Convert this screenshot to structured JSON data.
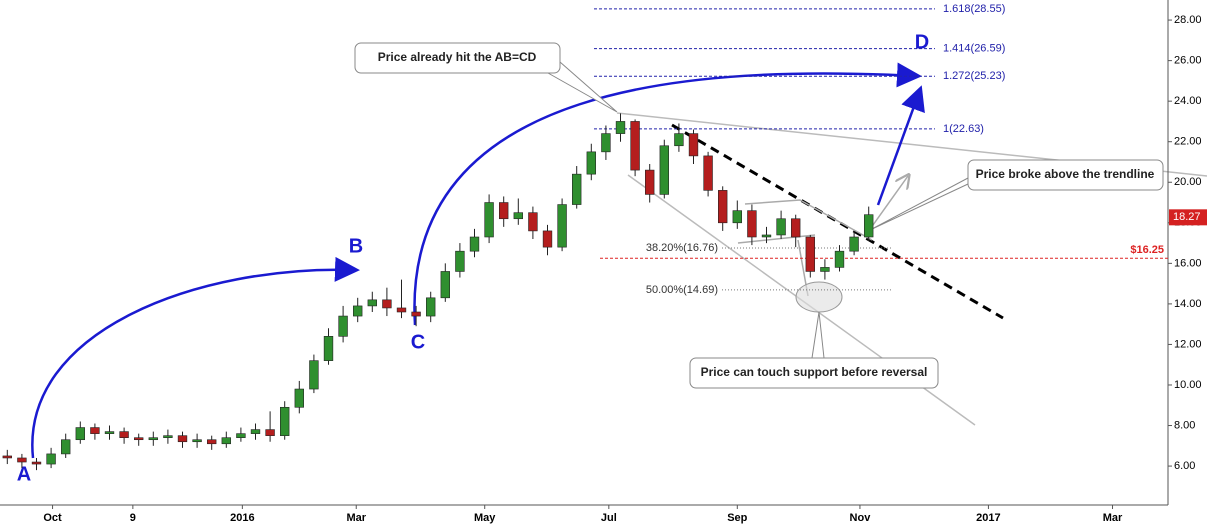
{
  "chart_data": {
    "type": "candlestick",
    "up_color": "#2f8f2f",
    "down_color": "#b41e1e",
    "open": [
      6.5,
      6.4,
      6.2,
      6.1,
      6.6,
      7.3,
      7.9,
      7.6,
      7.7,
      7.4,
      7.3,
      7.4,
      7.5,
      7.2,
      7.3,
      7.1,
      7.4,
      7.6,
      7.8,
      7.5,
      8.9,
      9.8,
      11.2,
      12.4,
      13.4,
      13.9,
      14.2,
      13.8,
      13.6,
      13.4,
      14.3,
      15.6,
      16.6,
      17.3,
      19.0,
      18.2,
      18.5,
      17.6,
      16.8,
      18.9,
      20.4,
      21.5,
      22.4,
      23.0,
      20.6,
      19.4,
      21.8,
      22.4,
      21.3,
      19.6,
      18.0,
      18.6,
      17.3,
      17.4,
      18.2,
      17.3,
      15.6,
      15.8,
      16.6,
      17.3
    ],
    "high": [
      6.8,
      6.6,
      6.4,
      6.9,
      7.6,
      8.2,
      8.1,
      8.0,
      7.9,
      7.6,
      7.7,
      7.8,
      7.7,
      7.6,
      7.5,
      7.7,
      7.9,
      8.1,
      8.7,
      9.2,
      10.2,
      11.5,
      12.8,
      13.9,
      14.3,
      14.6,
      14.8,
      15.2,
      13.9,
      14.6,
      16.0,
      17.0,
      17.7,
      19.4,
      19.3,
      19.2,
      18.8,
      17.9,
      19.2,
      20.8,
      21.9,
      22.8,
      23.4,
      23.1,
      20.9,
      22.1,
      22.9,
      22.6,
      21.5,
      19.8,
      19.1,
      18.9,
      17.8,
      18.6,
      18.4,
      17.4,
      16.2,
      16.9,
      17.6,
      18.8
    ],
    "low": [
      6.1,
      5.9,
      5.8,
      5.9,
      6.4,
      7.1,
      7.3,
      7.3,
      7.1,
      7.0,
      7.0,
      7.1,
      6.9,
      6.9,
      6.8,
      6.9,
      7.2,
      7.3,
      7.2,
      7.3,
      8.6,
      9.6,
      11.0,
      12.1,
      13.1,
      13.6,
      13.4,
      13.3,
      12.9,
      13.1,
      14.1,
      15.3,
      16.3,
      17.0,
      17.8,
      17.9,
      17.2,
      16.4,
      16.6,
      18.7,
      20.1,
      21.1,
      22.0,
      20.3,
      19.0,
      19.2,
      21.5,
      20.9,
      19.3,
      17.6,
      17.7,
      16.9,
      17.0,
      17.2,
      16.8,
      15.3,
      15.2,
      15.6,
      16.4,
      17.1
    ],
    "close": [
      6.4,
      6.2,
      6.1,
      6.6,
      7.3,
      7.9,
      7.6,
      7.7,
      7.4,
      7.3,
      7.4,
      7.5,
      7.2,
      7.3,
      7.1,
      7.4,
      7.6,
      7.8,
      7.5,
      8.9,
      9.8,
      11.2,
      12.4,
      13.4,
      13.9,
      14.2,
      13.8,
      13.6,
      13.4,
      14.3,
      15.6,
      16.6,
      17.3,
      19.0,
      18.2,
      18.5,
      17.6,
      16.8,
      18.9,
      20.4,
      21.5,
      22.4,
      23.0,
      20.6,
      19.4,
      21.8,
      22.4,
      21.3,
      19.6,
      18.0,
      18.6,
      17.3,
      17.4,
      18.2,
      17.3,
      15.6,
      15.8,
      16.6,
      17.3,
      18.4
    ],
    "ylim": [
      4.08,
      28.99
    ],
    "yticks": [
      {
        "value": 6,
        "label": "6.00"
      },
      {
        "value": 8,
        "label": "8.00"
      },
      {
        "value": 10,
        "label": "10.00"
      },
      {
        "value": 12,
        "label": "12.00"
      },
      {
        "value": 14,
        "label": "14.00"
      },
      {
        "value": 16,
        "label": "16.00"
      },
      {
        "value": 18,
        "label": "18.00"
      },
      {
        "value": 20,
        "label": "20.00"
      },
      {
        "value": 22,
        "label": "22.00"
      },
      {
        "value": 24,
        "label": "24.00"
      },
      {
        "value": 26,
        "label": "26.00"
      },
      {
        "value": 28,
        "label": "28.00"
      }
    ],
    "xlim": [
      0,
      80
    ],
    "xticks": [
      {
        "value": 3.6,
        "label": "Oct"
      },
      {
        "value": 9.1,
        "label": "9"
      },
      {
        "value": 16.6,
        "label": "2016"
      },
      {
        "value": 24.4,
        "label": "Mar"
      },
      {
        "value": 33.2,
        "label": "May"
      },
      {
        "value": 41.7,
        "label": "Jul"
      },
      {
        "value": 50.5,
        "label": "Sep"
      },
      {
        "value": 58.9,
        "label": "Nov"
      },
      {
        "value": 67.7,
        "label": "2017"
      },
      {
        "value": 76.2,
        "label": "Mar"
      }
    ],
    "last_price": 18.27,
    "price_line": {
      "value": 16.25,
      "label": "$16.25"
    },
    "fib_extensions": [
      {
        "value": 28.55,
        "label": "1.618(28.55)"
      },
      {
        "value": 26.59,
        "label": "1.414(26.59)"
      },
      {
        "value": 25.23,
        "label": "1.272(25.23)"
      },
      {
        "value": 22.63,
        "label": "1(22.63)"
      }
    ],
    "fib_retracements": [
      {
        "value": 16.76,
        "label": "38.20%(16.76)"
      },
      {
        "value": 14.69,
        "label": "50.00%(14.69)"
      }
    ],
    "points": [
      "A",
      "B",
      "C",
      "D"
    ],
    "annotations": [
      "Price already hit the AB=CD",
      "Price broke above the trendline",
      "Price can touch support before reversal"
    ]
  }
}
